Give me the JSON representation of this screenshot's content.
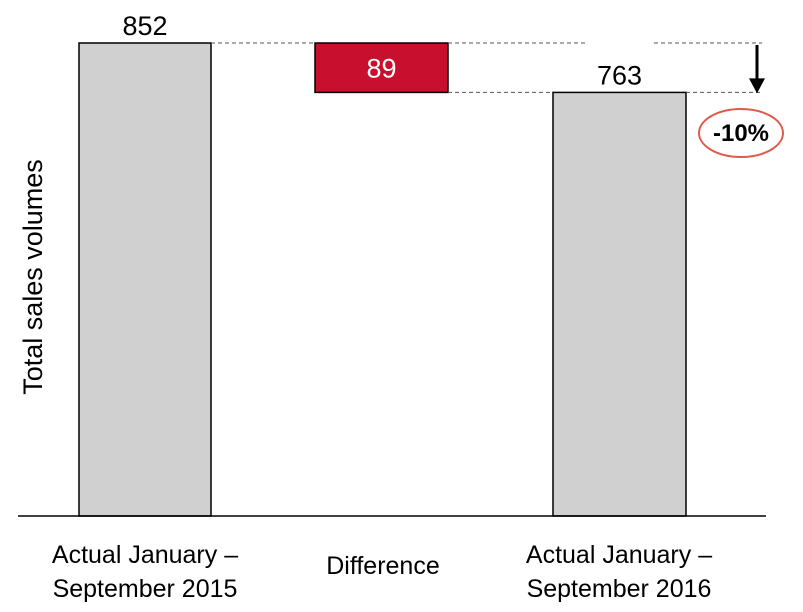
{
  "chart_data": {
    "type": "bar",
    "subtype": "waterfall",
    "ylabel": "Total sales volumes",
    "categories": [
      [
        "Actual January –",
        "September 2015"
      ],
      [
        "Difference"
      ],
      [
        "Actual January –",
        "September 2016"
      ]
    ],
    "values": [
      852,
      -89,
      763
    ],
    "data_labels": [
      "852",
      "89",
      "763"
    ],
    "annotation": "-10%",
    "colors": {
      "total_bar": "#d0d0d0",
      "difference_bar": "#c8102e",
      "annotation_ring": "#e05a4a",
      "bar_stroke": "#000000"
    },
    "grid": false,
    "legend": "none"
  }
}
